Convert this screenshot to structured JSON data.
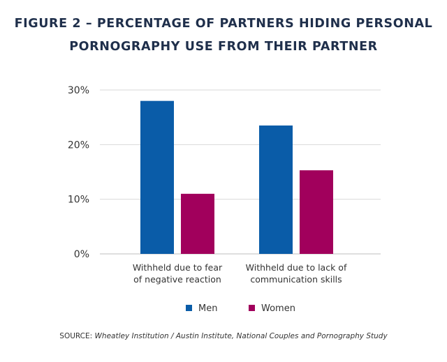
{
  "title_lines": [
    "FIGURE 2 – PERCENTAGE OF PARTNERS HIDING PERSONAL",
    "PORNOGRAPHY USE FROM THEIR PARTNER"
  ],
  "source": {
    "label": "SOURCE: ",
    "text": "Wheatley Institution / Austin Institute, National Couples and Pornography Study"
  },
  "colors": {
    "men": "#0a5ca8",
    "women": "#a1005c",
    "grid": "#d9d9d9",
    "title": "#1f2f4b"
  },
  "chart_data": {
    "type": "bar",
    "categories": [
      [
        "Withheld due to fear",
        "of negative reaction"
      ],
      [
        "Withheld due to lack of",
        "communication skills"
      ]
    ],
    "series": [
      {
        "name": "Men",
        "values": [
          28,
          23.5
        ]
      },
      {
        "name": "Women",
        "values": [
          11,
          15.3
        ]
      }
    ],
    "yticks": [
      "0%",
      "10%",
      "20%",
      "30%"
    ],
    "ylim": [
      0,
      30
    ],
    "grid": true,
    "legend": "bottom-center"
  }
}
